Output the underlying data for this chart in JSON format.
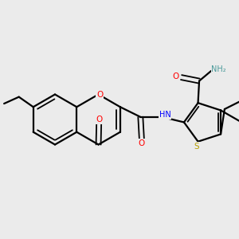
{
  "background_color": "#ebebeb",
  "atom_colors": {
    "O": "#ff0000",
    "N": "#0000ff",
    "S": "#b8a000",
    "H": "#4a9a9a"
  },
  "bond_color": "#000000",
  "figsize": [
    3.0,
    3.0
  ],
  "dpi": 100,
  "xlim": [
    0,
    10
  ],
  "ylim": [
    0,
    10
  ]
}
